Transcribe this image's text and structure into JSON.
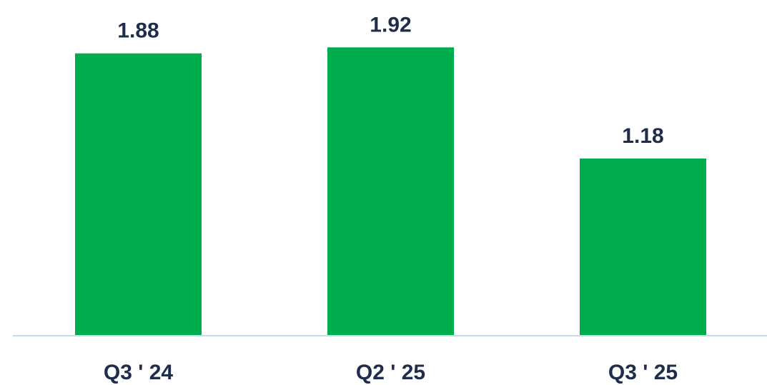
{
  "chart_data": {
    "type": "bar",
    "categories": [
      "Q3 ' 24",
      "Q2 ' 25",
      "Q3 ' 25"
    ],
    "values": [
      1.88,
      1.92,
      1.18
    ],
    "value_labels": [
      "1.88",
      "1.92",
      "1.18"
    ],
    "title": "",
    "xlabel": "",
    "ylabel": "",
    "ylim": [
      0,
      1.95
    ],
    "grid": false,
    "legend": "none",
    "colors": {
      "bar": "#00ad4e",
      "axis": "#c8dbe8",
      "text": "#1f2d4a"
    }
  }
}
